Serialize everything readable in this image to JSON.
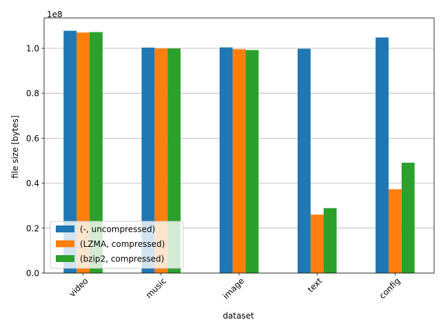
{
  "chart_data": {
    "type": "bar",
    "title": "",
    "xlabel": "dataset",
    "ylabel": "file size [bytes]",
    "y_offset_text": "1e8",
    "categories": [
      "video",
      "music",
      "image",
      "text",
      "config"
    ],
    "ylim": [
      0,
      113500000
    ],
    "yticks": [
      0,
      20000000,
      40000000,
      60000000,
      80000000,
      100000000
    ],
    "ytick_labels": [
      "0.0",
      "0.2",
      "0.4",
      "0.6",
      "0.8",
      "1.0"
    ],
    "grid": "y-axis",
    "legend_position": "lower-left",
    "series": [
      {
        "name": "(-, uncompressed)",
        "color": "#1f77b4",
        "values": [
          107800000,
          100300000,
          100400000,
          99800000,
          104800000
        ]
      },
      {
        "name": "(LZMA, compressed)",
        "color": "#ff7f0e",
        "values": [
          107000000,
          99900000,
          99600000,
          26000000,
          37300000
        ]
      },
      {
        "name": "(bzip2, compressed)",
        "color": "#2ca02c",
        "values": [
          107200000,
          99900000,
          99200000,
          28900000,
          49100000
        ]
      }
    ]
  }
}
